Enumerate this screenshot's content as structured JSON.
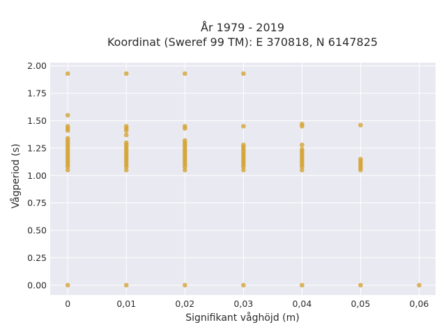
{
  "chart_data": {
    "type": "scatter",
    "title": "År 1979 - 2019",
    "subtitle": "Koordinat (Sweref 99 TM): E 370818, N 6147825",
    "xlabel": "Signifikant våghöjd (m)",
    "ylabel": "Vågperiod (s)",
    "xlim": [
      -0.003,
      0.0628
    ],
    "ylim": [
      -0.09,
      2.03
    ],
    "grid": true,
    "legend": "none",
    "x_ticks": [
      0,
      0.01,
      0.02,
      0.03,
      0.04,
      0.05,
      0.06
    ],
    "x_tick_labels": [
      "0",
      "0,01",
      "0,02",
      "0,03",
      "0,04",
      "0,05",
      "0,06"
    ],
    "y_ticks": [
      0,
      0.25,
      0.5,
      0.75,
      1.0,
      1.25,
      1.5,
      1.75,
      2.0
    ],
    "y_tick_labels": [
      "0.00",
      "0.25",
      "0.50",
      "0.75",
      "1.00",
      "1.25",
      "1.50",
      "1.75",
      "2.00"
    ],
    "colors": {
      "marker": "#d4a22e",
      "plot_background": "#e9e9f1",
      "grid": "#ffffff"
    },
    "series": [
      {
        "points": [
          [
            0,
            0
          ],
          [
            0,
            1.05
          ],
          [
            0,
            1.08
          ],
          [
            0,
            1.1
          ],
          [
            0,
            1.12
          ],
          [
            0,
            1.14
          ],
          [
            0,
            1.16
          ],
          [
            0,
            1.18
          ],
          [
            0,
            1.2
          ],
          [
            0,
            1.22
          ],
          [
            0,
            1.24
          ],
          [
            0,
            1.26
          ],
          [
            0,
            1.28
          ],
          [
            0,
            1.3
          ],
          [
            0,
            1.32
          ],
          [
            0,
            1.34
          ],
          [
            0,
            1.41
          ],
          [
            0,
            1.43
          ],
          [
            0,
            1.45
          ],
          [
            0,
            1.55
          ],
          [
            0,
            1.93
          ],
          [
            0.01,
            0
          ],
          [
            0.01,
            1.05
          ],
          [
            0.01,
            1.08
          ],
          [
            0.01,
            1.1
          ],
          [
            0.01,
            1.12
          ],
          [
            0.01,
            1.14
          ],
          [
            0.01,
            1.16
          ],
          [
            0.01,
            1.18
          ],
          [
            0.01,
            1.2
          ],
          [
            0.01,
            1.22
          ],
          [
            0.01,
            1.24
          ],
          [
            0.01,
            1.26
          ],
          [
            0.01,
            1.28
          ],
          [
            0.01,
            1.3
          ],
          [
            0.01,
            1.37
          ],
          [
            0.01,
            1.41
          ],
          [
            0.01,
            1.43
          ],
          [
            0.01,
            1.45
          ],
          [
            0.01,
            1.93
          ],
          [
            0.02,
            0
          ],
          [
            0.02,
            1.05
          ],
          [
            0.02,
            1.08
          ],
          [
            0.02,
            1.1
          ],
          [
            0.02,
            1.12
          ],
          [
            0.02,
            1.14
          ],
          [
            0.02,
            1.16
          ],
          [
            0.02,
            1.18
          ],
          [
            0.02,
            1.2
          ],
          [
            0.02,
            1.22
          ],
          [
            0.02,
            1.24
          ],
          [
            0.02,
            1.26
          ],
          [
            0.02,
            1.28
          ],
          [
            0.02,
            1.3
          ],
          [
            0.02,
            1.32
          ],
          [
            0.02,
            1.43
          ],
          [
            0.02,
            1.45
          ],
          [
            0.02,
            1.93
          ],
          [
            0.03,
            0
          ],
          [
            0.03,
            1.05
          ],
          [
            0.03,
            1.08
          ],
          [
            0.03,
            1.1
          ],
          [
            0.03,
            1.12
          ],
          [
            0.03,
            1.14
          ],
          [
            0.03,
            1.16
          ],
          [
            0.03,
            1.18
          ],
          [
            0.03,
            1.2
          ],
          [
            0.03,
            1.22
          ],
          [
            0.03,
            1.24
          ],
          [
            0.03,
            1.26
          ],
          [
            0.03,
            1.28
          ],
          [
            0.03,
            1.45
          ],
          [
            0.03,
            1.93
          ],
          [
            0.04,
            0
          ],
          [
            0.04,
            1.05
          ],
          [
            0.04,
            1.08
          ],
          [
            0.04,
            1.1
          ],
          [
            0.04,
            1.12
          ],
          [
            0.04,
            1.14
          ],
          [
            0.04,
            1.16
          ],
          [
            0.04,
            1.18
          ],
          [
            0.04,
            1.2
          ],
          [
            0.04,
            1.22
          ],
          [
            0.04,
            1.24
          ],
          [
            0.04,
            1.28
          ],
          [
            0.04,
            1.45
          ],
          [
            0.04,
            1.47
          ],
          [
            0.05,
            0
          ],
          [
            0.05,
            1.05
          ],
          [
            0.05,
            1.07
          ],
          [
            0.05,
            1.09
          ],
          [
            0.05,
            1.11
          ],
          [
            0.05,
            1.13
          ],
          [
            0.05,
            1.15
          ],
          [
            0.05,
            1.46
          ],
          [
            0.06,
            0
          ]
        ]
      }
    ]
  }
}
